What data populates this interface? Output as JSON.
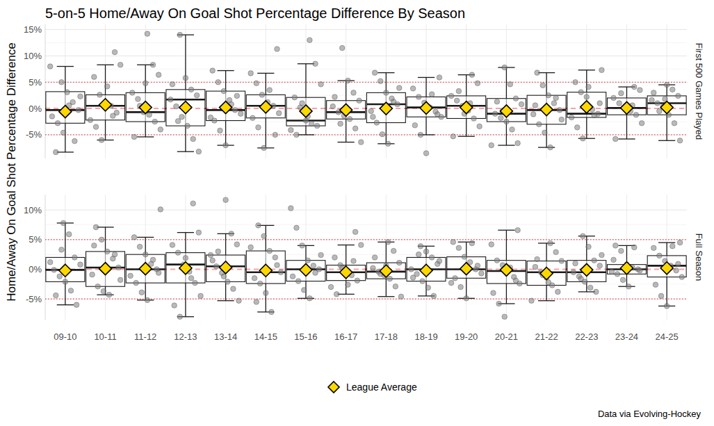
{
  "chart_data": {
    "type": "box",
    "title": "5-on-5 Home/Away On Goal Shot Percentage Difference By Season",
    "y_label": "Home/Away On Goal Shot Percentage Difference",
    "legend_label": "League Average",
    "caption": "Data via Evolving-Hockey",
    "grid": true,
    "categories": [
      "09-10",
      "10-11",
      "11-12",
      "12-13",
      "13-14",
      "14-15",
      "15-16",
      "16-17",
      "17-18",
      "18-19",
      "19-20",
      "20-21",
      "21-22",
      "22-23",
      "23-24",
      "24-25"
    ],
    "reference_lines": [
      {
        "value": 0,
        "line_style": "dashed",
        "color": "#e41a1c"
      },
      {
        "value": -5,
        "line_style": "dotted",
        "color": "#e41a1c"
      },
      {
        "value": 5,
        "line_style": "dotted",
        "color": "#e41a1c"
      }
    ],
    "panels": [
      {
        "name": "First 500 Games Played",
        "ylim": [
          -9.5,
          16
        ],
        "yticks": [
          {
            "value": -5,
            "label": "-5%"
          },
          {
            "value": 0,
            "label": "0%"
          },
          {
            "value": 5,
            "label": "5%"
          },
          {
            "value": 10,
            "label": "10%"
          },
          {
            "value": 15,
            "label": "15%"
          }
        ],
        "whisker_low": [
          -8.3,
          -6.0,
          -5.4,
          -8.2,
          -7.0,
          -7.5,
          -5.0,
          -6.4,
          -6.7,
          -5.0,
          -5.3,
          -7.0,
          -7.4,
          -5.7,
          -5.8,
          -6.1
        ],
        "q1": [
          -2.8,
          -2.2,
          -2.5,
          -3.3,
          -2.3,
          -1.8,
          -3.3,
          -2.0,
          -2.7,
          -1.6,
          -1.9,
          -2.5,
          -3.0,
          -1.7,
          -1.2,
          -1.2
        ],
        "median": [
          -0.3,
          0.5,
          -0.7,
          1.7,
          -0.3,
          0.5,
          -2.3,
          -0.7,
          0.8,
          0.2,
          0.5,
          -1.0,
          -0.3,
          -1.0,
          0.1,
          1.0
        ],
        "q3": [
          3.2,
          2.6,
          3.0,
          3.6,
          3.3,
          2.6,
          2.1,
          1.5,
          3.0,
          2.2,
          2.4,
          1.9,
          2.5,
          3.1,
          2.0,
          2.4
        ],
        "whisker_high": [
          8.0,
          8.3,
          8.3,
          14.0,
          7.2,
          6.7,
          8.5,
          5.3,
          6.8,
          5.9,
          6.4,
          7.8,
          6.8,
          7.3,
          4.1,
          4.5
        ],
        "mean": [
          -0.6,
          0.7,
          0.2,
          0.2,
          0.2,
          0.3,
          -0.5,
          -0.3,
          0.0,
          0.1,
          0.2,
          -0.5,
          -0.2,
          0.3,
          0.1,
          0.2
        ],
        "points": [
          [
            8.0,
            -8.3,
            5.0,
            3.1,
            1.2,
            -0.3,
            -1.5,
            -2.8,
            -4.6,
            0.6,
            -6.2,
            2.3
          ],
          [
            10.7,
            8.3,
            6.0,
            2.6,
            1.0,
            0.5,
            -0.8,
            -2.2,
            -3.5,
            -6.0,
            4.2,
            -1.4
          ],
          [
            14.2,
            8.3,
            6.4,
            3.0,
            1.8,
            -0.7,
            -1.2,
            -2.5,
            -4.0,
            -5.4,
            0.5,
            4.8
          ],
          [
            14.0,
            5.8,
            3.6,
            2.5,
            1.7,
            0.4,
            -1.6,
            -3.3,
            -5.8,
            -8.2,
            4.6,
            -2.4
          ],
          [
            7.2,
            5.0,
            3.3,
            1.6,
            -0.3,
            -1.0,
            -2.3,
            -4.2,
            -7.0,
            0.8,
            2.4,
            -1.7
          ],
          [
            11.3,
            6.7,
            4.8,
            2.6,
            1.2,
            0.5,
            -0.9,
            -1.8,
            -3.6,
            -7.5,
            3.5,
            -5.0
          ],
          [
            13.0,
            8.5,
            4.6,
            2.1,
            0.2,
            -2.3,
            -2.9,
            -3.3,
            -4.1,
            -5.0,
            1.0,
            -1.5
          ],
          [
            11.5,
            5.3,
            3.0,
            1.5,
            0.4,
            -0.7,
            -1.4,
            -2.0,
            -3.8,
            -6.4,
            2.2,
            -2.9
          ],
          [
            6.8,
            5.2,
            3.0,
            1.9,
            0.8,
            -0.5,
            -2.7,
            -4.9,
            -6.7,
            1.3,
            3.9,
            -1.6
          ],
          [
            5.9,
            3.8,
            2.2,
            1.1,
            0.2,
            -0.6,
            -1.6,
            -3.2,
            -5.0,
            -8.5,
            2.7,
            -1.1
          ],
          [
            6.4,
            4.8,
            2.4,
            1.5,
            0.5,
            -0.4,
            -1.9,
            -3.4,
            -5.3,
            3.3,
            -1.0,
            1.0
          ],
          [
            7.8,
            4.6,
            1.9,
            0.8,
            -1.0,
            -1.8,
            -2.5,
            -4.0,
            -6.6,
            -7.0,
            1.3,
            -0.4
          ],
          [
            6.8,
            4.4,
            2.5,
            1.0,
            -0.3,
            -1.1,
            -3.0,
            -4.6,
            -7.4,
            2.0,
            -2.1,
            0.6
          ],
          [
            7.3,
            5.0,
            3.1,
            2.2,
            -0.2,
            -1.0,
            -1.7,
            -3.6,
            -5.7,
            4.1,
            -1.3,
            1.0
          ],
          [
            4.1,
            3.5,
            2.0,
            1.0,
            0.1,
            -0.5,
            -1.2,
            -2.8,
            -5.8,
            2.9,
            -0.2,
            0.6
          ],
          [
            4.5,
            3.6,
            2.4,
            1.6,
            1.0,
            0.3,
            -1.2,
            -2.8,
            -6.1,
            3.0,
            -0.5,
            1.8
          ]
        ]
      },
      {
        "name": "Full Season",
        "ylim": [
          -8.5,
          12.6
        ],
        "yticks": [
          {
            "value": -5,
            "label": "-5%"
          },
          {
            "value": 0,
            "label": "0%"
          },
          {
            "value": 5,
            "label": "5%"
          },
          {
            "value": 10,
            "label": "10%"
          }
        ],
        "whisker_low": [
          -6.0,
          -4.3,
          -5.2,
          -8.0,
          -5.3,
          -7.2,
          -4.9,
          -4.2,
          -4.6,
          -4.5,
          -4.9,
          -5.8,
          -5.3,
          -3.8,
          -2.9,
          -6.2
        ],
        "q1": [
          -2.1,
          -2.9,
          -2.3,
          -2.3,
          -2.1,
          -2.4,
          -2.0,
          -1.9,
          -1.6,
          -2.0,
          -1.5,
          -2.4,
          -2.7,
          -2.1,
          -0.8,
          -1.3
        ],
        "median": [
          -0.1,
          0.3,
          0.0,
          0.8,
          0.5,
          -0.5,
          0.0,
          -0.5,
          -0.4,
          0.0,
          0.0,
          -0.3,
          -0.5,
          -0.5,
          0.0,
          0.6
        ],
        "q3": [
          2.0,
          3.0,
          2.5,
          2.8,
          2.4,
          3.1,
          1.5,
          0.7,
          1.1,
          2.0,
          2.1,
          1.5,
          1.4,
          1.5,
          0.8,
          2.3
        ],
        "whisker_high": [
          7.8,
          7.1,
          5.4,
          6.2,
          6.0,
          7.4,
          4.0,
          4.1,
          4.6,
          3.9,
          4.6,
          6.6,
          4.4,
          5.6,
          4.0,
          4.5
        ],
        "mean": [
          -0.2,
          0.1,
          0.1,
          0.2,
          0.3,
          -0.2,
          -0.1,
          -0.5,
          -0.3,
          -0.2,
          0.1,
          -0.1,
          -0.7,
          -0.1,
          0.2,
          0.2
        ],
        "points": [
          [
            7.8,
            5.9,
            2.0,
            0.8,
            -0.1,
            -1.2,
            -2.1,
            -3.6,
            -6.0,
            1.2,
            -4.4,
            3.3
          ],
          [
            7.1,
            5.0,
            3.0,
            1.8,
            0.3,
            -0.9,
            -2.9,
            -3.7,
            -4.3,
            2.5,
            -1.8,
            4.0
          ],
          [
            10.1,
            5.4,
            3.8,
            2.5,
            0.9,
            0,
            -1.1,
            -2.3,
            -3.9,
            -5.2,
            1.6,
            -0.6
          ],
          [
            11.1,
            6.2,
            4.1,
            2.8,
            0.8,
            -0.4,
            -2.3,
            -4.5,
            -6.1,
            -8.0,
            1.9,
            -1.5
          ],
          [
            11.7,
            6.0,
            4.2,
            2.4,
            0.5,
            -0.6,
            -2.1,
            -3.3,
            -5.3,
            1.5,
            3.0,
            -1.2
          ],
          [
            7.4,
            5.6,
            3.1,
            2.0,
            -0.5,
            -1.5,
            -2.4,
            -4.0,
            -7.2,
            0.7,
            3.7,
            -5.5
          ],
          [
            10.3,
            7.0,
            4.0,
            1.5,
            0.6,
            0,
            -1.2,
            -2.0,
            -3.5,
            -4.9,
            -0.6,
            2.4
          ],
          [
            6.3,
            4.1,
            2.0,
            0.7,
            -0.5,
            -1.0,
            -1.9,
            -3.0,
            -4.2,
            0.2,
            -2.6,
            1.4
          ],
          [
            4.6,
            3.1,
            1.1,
            0.2,
            -0.4,
            -1.0,
            -1.6,
            -2.9,
            -4.6,
            2.0,
            -0.8,
            0.6
          ],
          [
            3.9,
            3.0,
            2.0,
            0.9,
            0,
            -0.8,
            -2.0,
            -3.1,
            -4.5,
            1.4,
            -1.4,
            2.5
          ],
          [
            4.6,
            3.6,
            2.1,
            1.2,
            0,
            -0.7,
            -1.5,
            -3.0,
            -4.9,
            4.4,
            0.6,
            -2.3
          ],
          [
            6.6,
            4.2,
            1.5,
            0.7,
            -0.3,
            -1.3,
            -2.4,
            -4.0,
            -5.8,
            -8.0,
            0.3,
            -1.9
          ],
          [
            4.4,
            2.9,
            1.4,
            0.4,
            -0.5,
            -1.4,
            -2.7,
            -3.8,
            -5.3,
            1.7,
            -1.0,
            -2.2
          ],
          [
            5.6,
            3.8,
            1.5,
            0.6,
            -0.5,
            -1.2,
            -2.1,
            -3.1,
            -3.8,
            2.4,
            1.0,
            -1.6
          ],
          [
            4.0,
            3.1,
            0.8,
            0.3,
            0,
            -0.4,
            -0.8,
            -1.8,
            -2.9,
            3.7,
            -0.2,
            1.6
          ],
          [
            4.5,
            3.6,
            2.3,
            1.4,
            0.6,
            -0.2,
            -1.3,
            -2.6,
            -4.5,
            -6.2,
            3.9,
            0.9
          ]
        ]
      }
    ]
  }
}
